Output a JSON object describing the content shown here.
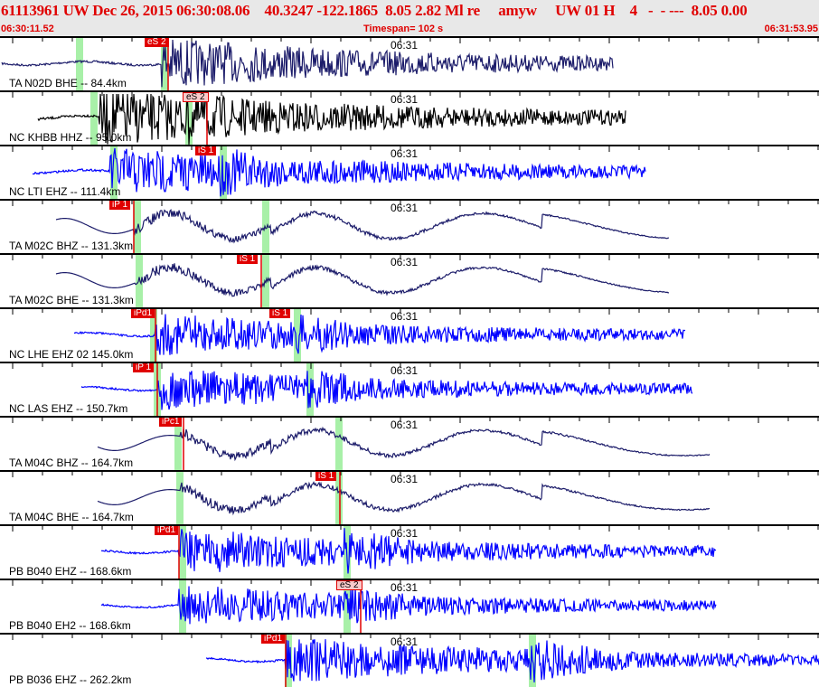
{
  "header": {
    "title": "61113961 UW Dec 26, 2015 06:30:08.06    40.3247 -122.1865  8.05 2.82 Ml re     amyw     UW 01 H    4   -  - ---  8.05 0.00",
    "start_time": "06:30:11.52",
    "timespan": "Timespan= 102 s",
    "end_time": "06:31:53.95"
  },
  "colors": {
    "header_text": "#e00000",
    "pick": "#e00000",
    "window": "#a8f0a8",
    "bh": "#1c1c6a",
    "hh": "#000000",
    "eh": "#0000ff"
  },
  "time_tick_label": "06:31",
  "traces": [
    {
      "label": "TA N02D BHE -- 84.4km",
      "picks": [
        {
          "text": "eS 2",
          "style": "red"
        }
      ]
    },
    {
      "label": "NC KHBB HHZ -- 95.0km",
      "picks": [
        {
          "text": "eS 2",
          "style": "pink"
        }
      ]
    },
    {
      "label": "NC LTI EHZ -- 111.4km",
      "picks": [
        {
          "text": "iS 1",
          "style": "red"
        }
      ]
    },
    {
      "label": "TA M02C BHZ -- 131.3km",
      "picks": [
        {
          "text": "iP 1",
          "style": "red"
        }
      ]
    },
    {
      "label": "TA M02C BHE -- 131.3km",
      "picks": [
        {
          "text": "iS 1",
          "style": "red"
        }
      ]
    },
    {
      "label": "NC LHE EHZ 02 145.0km",
      "picks": [
        {
          "text": "iPd1",
          "style": "red"
        },
        {
          "text": "iS 1",
          "style": "red"
        }
      ]
    },
    {
      "label": "NC LAS EHZ -- 150.7km",
      "picks": [
        {
          "text": "iP 1",
          "style": "red"
        }
      ]
    },
    {
      "label": "TA M04C BHZ -- 164.7km",
      "picks": [
        {
          "text": "iPc1",
          "style": "red"
        }
      ]
    },
    {
      "label": "TA M04C BHE -- 164.7km",
      "picks": [
        {
          "text": "iS 1",
          "style": "red"
        }
      ]
    },
    {
      "label": "PB B040 EHZ -- 168.6km",
      "picks": [
        {
          "text": "iPd1",
          "style": "red"
        }
      ]
    },
    {
      "label": "PB B040 EH2 -- 168.6km",
      "picks": [
        {
          "text": "eS 2",
          "style": "pink"
        }
      ]
    },
    {
      "label": "PB B036 EHZ -- 262.2km",
      "picks": [
        {
          "text": "iPd1",
          "style": "red"
        }
      ]
    }
  ]
}
